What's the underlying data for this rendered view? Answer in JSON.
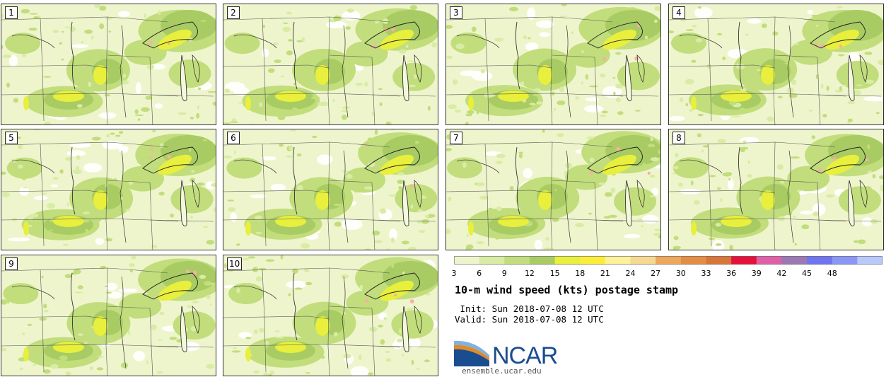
{
  "panels": [
    {
      "label": "1"
    },
    {
      "label": "2"
    },
    {
      "label": "3"
    },
    {
      "label": "4"
    },
    {
      "label": "5"
    },
    {
      "label": "6"
    },
    {
      "label": "7"
    },
    {
      "label": "8"
    },
    {
      "label": "9"
    },
    {
      "label": "10"
    }
  ],
  "colorbar": {
    "colors": [
      "#eef5cc",
      "#d9eca5",
      "#c2dd7c",
      "#a8cc63",
      "#e8ef3c",
      "#fbee3a",
      "#fdf29a",
      "#f5d891",
      "#eda85c",
      "#e48e45",
      "#d8753a",
      "#e6103a",
      "#e060a8",
      "#9b78b3",
      "#6f75ee",
      "#8a97f5",
      "#b8c9fb"
    ],
    "ticks": [
      "3",
      "6",
      "9",
      "12",
      "15",
      "18",
      "21",
      "24",
      "27",
      "30",
      "33",
      "36",
      "39",
      "42",
      "45",
      "48"
    ]
  },
  "title": "10-m wind speed (kts) postage stamp",
  "init_line": " Init: Sun 2018-07-08 12 UTC",
  "valid_line": "Valid: Sun 2018-07-08 12 UTC",
  "logo": {
    "name": "NCAR",
    "url": "ensemble.ucar.edu",
    "colors": {
      "blue": "#1a4d8f",
      "orange": "#e28a28",
      "light_blue": "#7fb2df"
    }
  }
}
